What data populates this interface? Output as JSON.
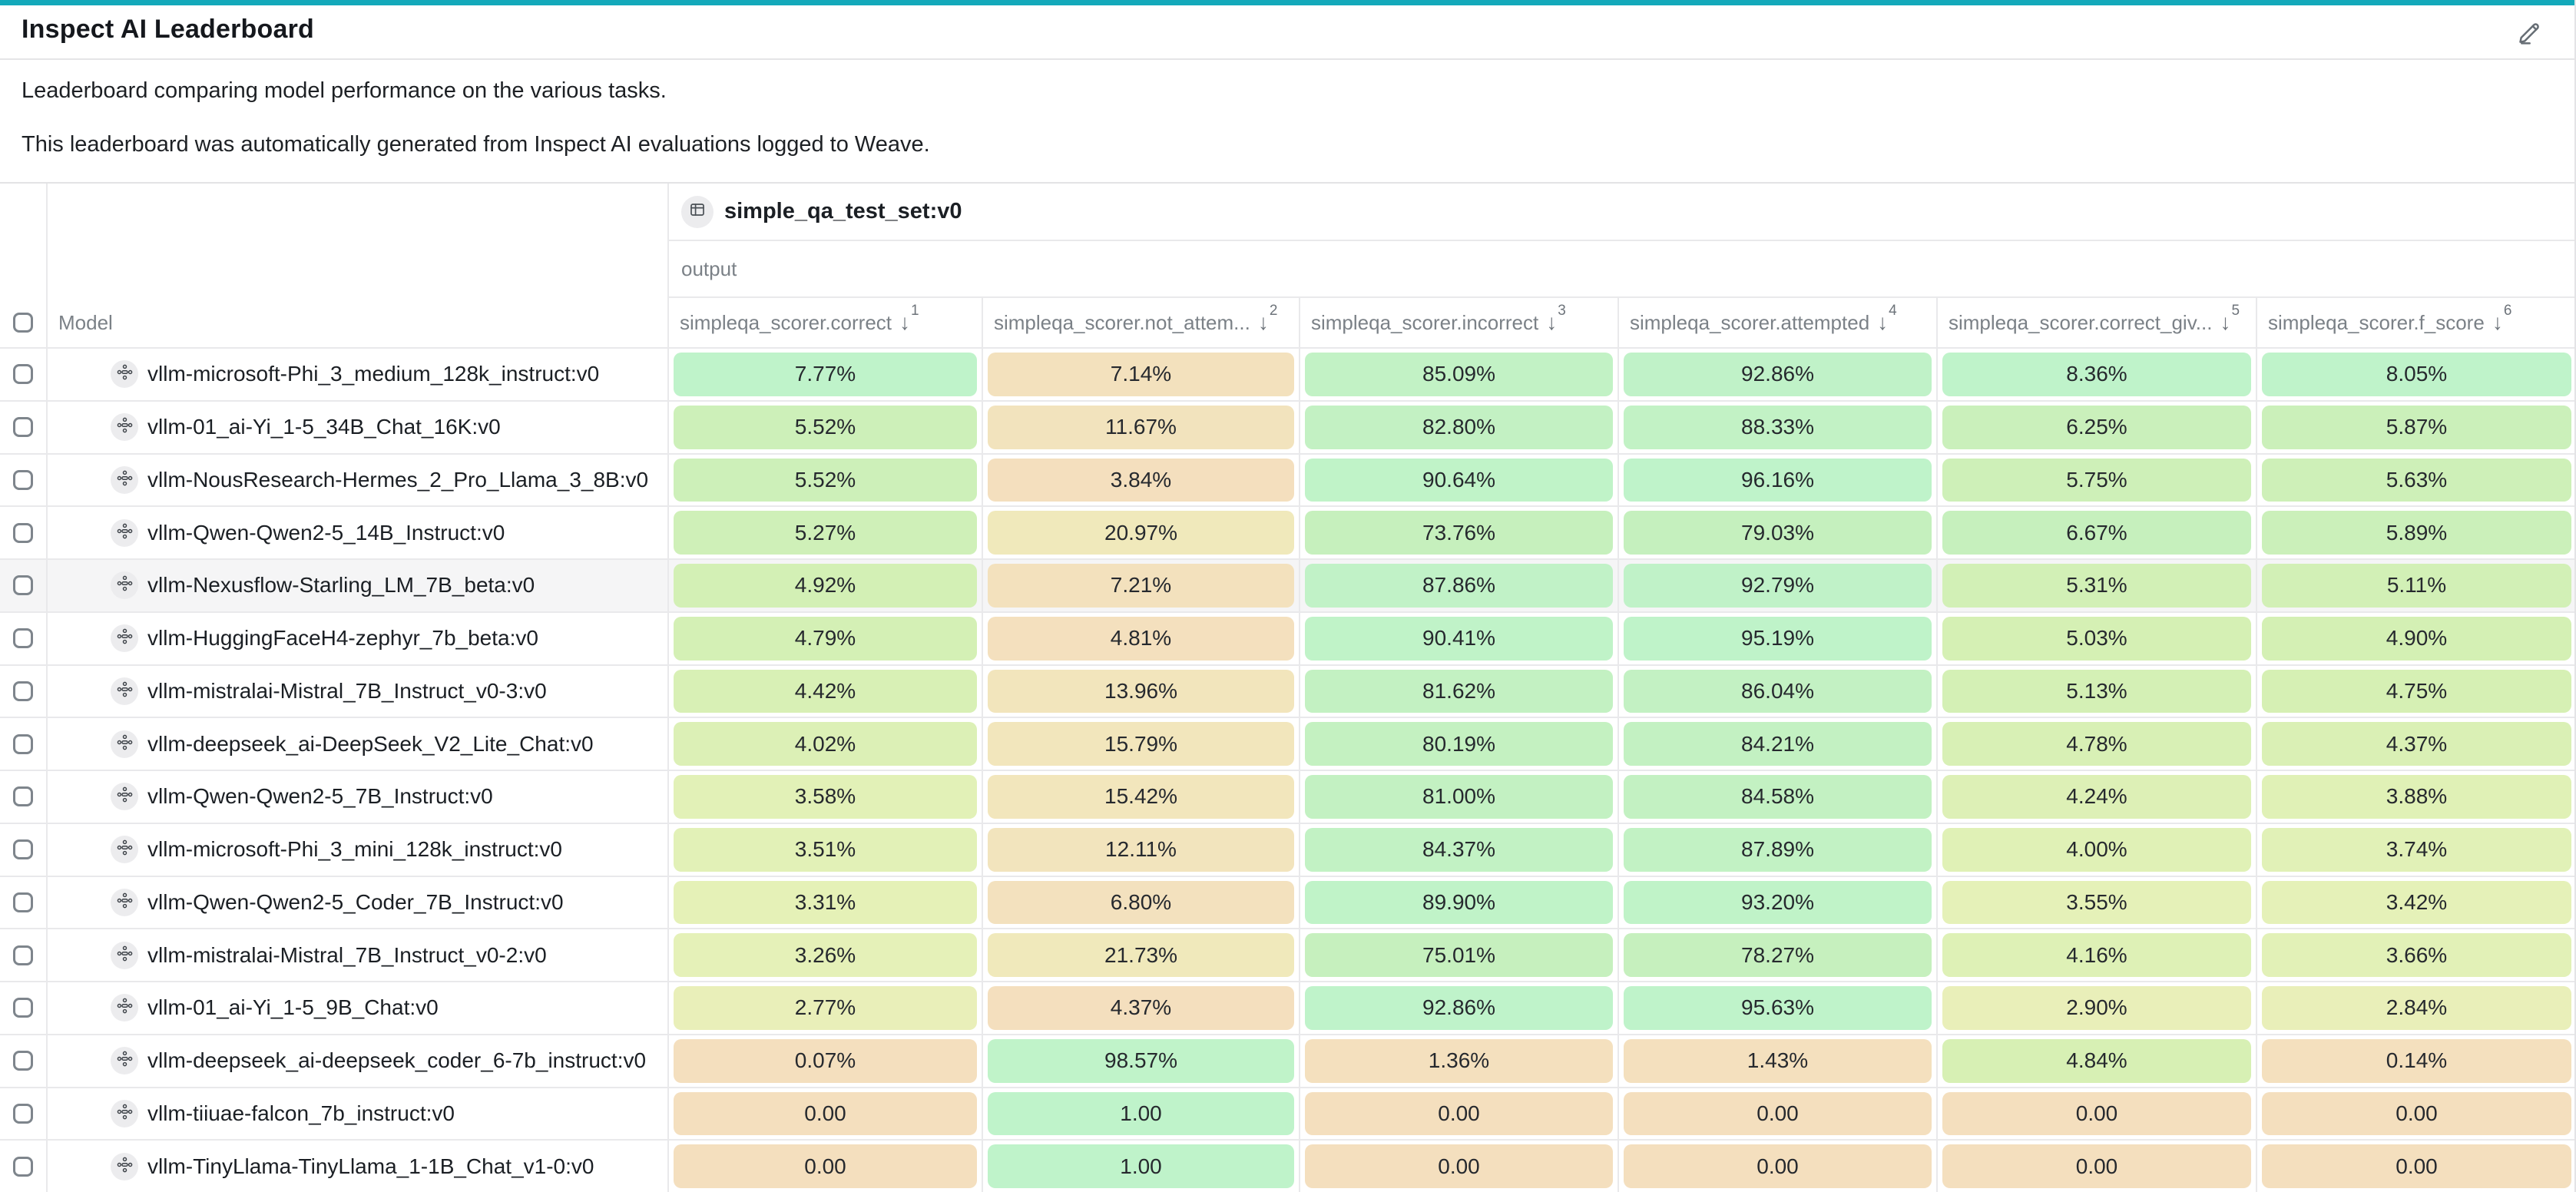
{
  "theme": {
    "accent_teal": "#13a9ba",
    "cell_scale": [
      "#f4dfbe",
      "#f0eabb",
      "#e7f1b8",
      "#d5f0b4",
      "#c6f0bd",
      "#bff3ca"
    ],
    "highlight_row": "#f5f5f6"
  },
  "header": {
    "title": "Inspect AI Leaderboard",
    "description_line1": "Leaderboard comparing model performance on the various tasks.",
    "description_line2": "This leaderboard was automatically generated from Inspect AI evaluations logged to Weave."
  },
  "table": {
    "dataset_header": {
      "icon": "table-icon",
      "label": "simple_qa_test_set:v0"
    },
    "output_label": "output",
    "model_column_label": "Model",
    "columns": [
      {
        "label": "simpleqa_scorer.correct",
        "sort_rank": "1"
      },
      {
        "label": "simpleqa_scorer.not_attem...",
        "sort_rank": "2"
      },
      {
        "label": "simpleqa_scorer.incorrect",
        "sort_rank": "3"
      },
      {
        "label": "simpleqa_scorer.attempted",
        "sort_rank": "4"
      },
      {
        "label": "simpleqa_scorer.correct_giv...",
        "sort_rank": "5"
      },
      {
        "label": "simpleqa_scorer.f_score",
        "sort_rank": "6"
      }
    ],
    "rows": [
      {
        "model": "vllm-microsoft-Phi_3_medium_128k_instruct:v0",
        "highlighted": false,
        "values": [
          "7.77%",
          "7.14%",
          "85.09%",
          "92.86%",
          "8.36%",
          "8.05%"
        ]
      },
      {
        "model": "vllm-01_ai-Yi_1-5_34B_Chat_16K:v0",
        "highlighted": false,
        "values": [
          "5.52%",
          "11.67%",
          "82.80%",
          "88.33%",
          "6.25%",
          "5.87%"
        ]
      },
      {
        "model": "vllm-NousResearch-Hermes_2_Pro_Llama_3_8B:v0",
        "highlighted": false,
        "values": [
          "5.52%",
          "3.84%",
          "90.64%",
          "96.16%",
          "5.75%",
          "5.63%"
        ]
      },
      {
        "model": "vllm-Qwen-Qwen2-5_14B_Instruct:v0",
        "highlighted": false,
        "values": [
          "5.27%",
          "20.97%",
          "73.76%",
          "79.03%",
          "6.67%",
          "5.89%"
        ]
      },
      {
        "model": "vllm-Nexusflow-Starling_LM_7B_beta:v0",
        "highlighted": true,
        "values": [
          "4.92%",
          "7.21%",
          "87.86%",
          "92.79%",
          "5.31%",
          "5.11%"
        ]
      },
      {
        "model": "vllm-HuggingFaceH4-zephyr_7b_beta:v0",
        "highlighted": false,
        "values": [
          "4.79%",
          "4.81%",
          "90.41%",
          "95.19%",
          "5.03%",
          "4.90%"
        ]
      },
      {
        "model": "vllm-mistralai-Mistral_7B_Instruct_v0-3:v0",
        "highlighted": false,
        "values": [
          "4.42%",
          "13.96%",
          "81.62%",
          "86.04%",
          "5.13%",
          "4.75%"
        ]
      },
      {
        "model": "vllm-deepseek_ai-DeepSeek_V2_Lite_Chat:v0",
        "highlighted": false,
        "values": [
          "4.02%",
          "15.79%",
          "80.19%",
          "84.21%",
          "4.78%",
          "4.37%"
        ]
      },
      {
        "model": "vllm-Qwen-Qwen2-5_7B_Instruct:v0",
        "highlighted": false,
        "values": [
          "3.58%",
          "15.42%",
          "81.00%",
          "84.58%",
          "4.24%",
          "3.88%"
        ]
      },
      {
        "model": "vllm-microsoft-Phi_3_mini_128k_instruct:v0",
        "highlighted": false,
        "values": [
          "3.51%",
          "12.11%",
          "84.37%",
          "87.89%",
          "4.00%",
          "3.74%"
        ]
      },
      {
        "model": "vllm-Qwen-Qwen2-5_Coder_7B_Instruct:v0",
        "highlighted": false,
        "values": [
          "3.31%",
          "6.80%",
          "89.90%",
          "93.20%",
          "3.55%",
          "3.42%"
        ]
      },
      {
        "model": "vllm-mistralai-Mistral_7B_Instruct_v0-2:v0",
        "highlighted": false,
        "values": [
          "3.26%",
          "21.73%",
          "75.01%",
          "78.27%",
          "4.16%",
          "3.66%"
        ]
      },
      {
        "model": "vllm-01_ai-Yi_1-5_9B_Chat:v0",
        "highlighted": false,
        "values": [
          "2.77%",
          "4.37%",
          "92.86%",
          "95.63%",
          "2.90%",
          "2.84%"
        ]
      },
      {
        "model": "vllm-deepseek_ai-deepseek_coder_6-7b_instruct:v0",
        "highlighted": false,
        "values": [
          "0.07%",
          "98.57%",
          "1.36%",
          "1.43%",
          "4.84%",
          "0.14%"
        ]
      },
      {
        "model": "vllm-tiiuae-falcon_7b_instruct:v0",
        "highlighted": false,
        "values": [
          "0.00",
          "1.00",
          "0.00",
          "0.00",
          "0.00",
          "0.00"
        ]
      },
      {
        "model": "vllm-TinyLlama-TinyLlama_1-1B_Chat_v1-0:v0",
        "highlighted": false,
        "values": [
          "0.00",
          "1.00",
          "0.00",
          "0.00",
          "0.00",
          "0.00"
        ]
      }
    ]
  }
}
